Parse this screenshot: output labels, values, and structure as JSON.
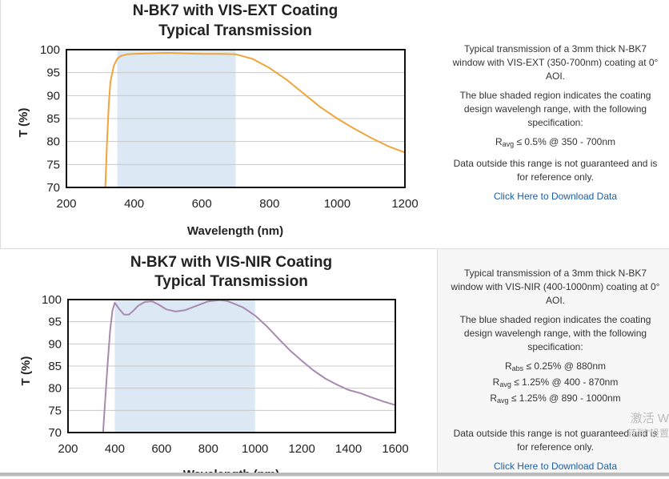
{
  "charts": [
    {
      "title_line1": "N-BK7 with VIS-EXT Coating",
      "title_line2": "Typical Transmission",
      "xlabel": "Wavelength (nm)",
      "ylabel": "T (%)",
      "description": {
        "p1": "Typical transmission of a 3mm thick N-BK7 window with VIS-EXT (350-700nm) coating at 0° AOI.",
        "p2": "The blue shaded region indicates the coating design wavelengh range, with the following specification:",
        "specs": [
          {
            "r": "R",
            "sub": "avg",
            "text": " ≤ 0.5% @ 350 - 700nm"
          }
        ],
        "p3": "Data outside this range is not guaranteed and is for reference only.",
        "link": "Click Here to Download Data"
      }
    },
    {
      "title_line1": "N-BK7 with VIS-NIR Coating",
      "title_line2": "Typical Transmission",
      "xlabel": "Wavelength (nm)",
      "ylabel": "T (%)",
      "description": {
        "p1": "Typical transmission of a 3mm thick N-BK7 window with VIS-NIR (400-1000nm) coating at 0° AOI.",
        "p2": "The blue shaded region indicates the coating design wavelengh range, with the following specification:",
        "specs": [
          {
            "r": "R",
            "sub": "abs",
            "text": " ≤ 0.25% @ 880nm"
          },
          {
            "r": "R",
            "sub": "avg",
            "text": " ≤ 1.25% @ 400 - 870nm"
          },
          {
            "r": "R",
            "sub": "avg",
            "text": " ≤ 1.25% @ 890 - 1000nm"
          }
        ],
        "p3": "Data outside this range is not guaranteed and is for reference only.",
        "link": "Click Here to Download Data"
      }
    }
  ],
  "watermark": {
    "line1": "激活 W",
    "line2": "转到\"设置"
  },
  "chart_data": [
    {
      "type": "line",
      "title": "N-BK7 with VIS-EXT Coating Typical Transmission",
      "xlabel": "Wavelength (nm)",
      "ylabel": "T (%)",
      "xlim": [
        200,
        1200
      ],
      "ylim": [
        70,
        100
      ],
      "xticks": [
        200,
        400,
        600,
        800,
        1000,
        1200
      ],
      "yticks": [
        70,
        75,
        80,
        85,
        90,
        95,
        100
      ],
      "shaded_range": [
        350,
        700
      ],
      "color": "#f0a53c",
      "shade_color": "#dce9f5",
      "grid": true,
      "series": [
        {
          "x": [
            315,
            320,
            325,
            330,
            340,
            350,
            360,
            380,
            400,
            450,
            500,
            550,
            600,
            650,
            700,
            750,
            800,
            850,
            900,
            950,
            1000,
            1050,
            1100,
            1150,
            1200
          ],
          "y": [
            70,
            80,
            88,
            93,
            96.5,
            98,
            98.6,
            99,
            99.1,
            99.2,
            99.3,
            99.2,
            99.1,
            99.1,
            99,
            98,
            96,
            93.5,
            90.5,
            87.5,
            85,
            82.8,
            80.8,
            79,
            77.6
          ]
        }
      ]
    },
    {
      "type": "line",
      "title": "N-BK7 with VIS-NIR Coating Typical Transmission",
      "xlabel": "Wavelength (nm)",
      "ylabel": "T (%)",
      "xlim": [
        200,
        1600
      ],
      "ylim": [
        70,
        100
      ],
      "xticks": [
        200,
        400,
        600,
        800,
        1000,
        1200,
        1400,
        1600
      ],
      "yticks": [
        70,
        75,
        80,
        85,
        90,
        95,
        100
      ],
      "shaded_range": [
        400,
        1000
      ],
      "color": "#a88ab0",
      "shade_color": "#dce9f5",
      "grid": true,
      "series": [
        {
          "x": [
            350,
            360,
            370,
            380,
            390,
            400,
            420,
            440,
            460,
            480,
            500,
            530,
            560,
            590,
            620,
            660,
            700,
            750,
            800,
            850,
            880,
            900,
            950,
            1000,
            1050,
            1100,
            1150,
            1200,
            1250,
            1300,
            1350,
            1400,
            1450,
            1500,
            1550,
            1600
          ],
          "y": [
            70,
            78,
            86,
            93,
            97.5,
            99.3,
            97.8,
            96.6,
            96.6,
            97.5,
            98.6,
            99.5,
            99.6,
            98.8,
            97.8,
            97.3,
            97.6,
            98.6,
            99.6,
            99.9,
            99.7,
            99.3,
            98.2,
            96.4,
            94,
            91.2,
            88.5,
            86.2,
            84,
            82.2,
            80.8,
            79.6,
            78.9,
            77.9,
            77,
            76.2
          ]
        }
      ]
    }
  ]
}
